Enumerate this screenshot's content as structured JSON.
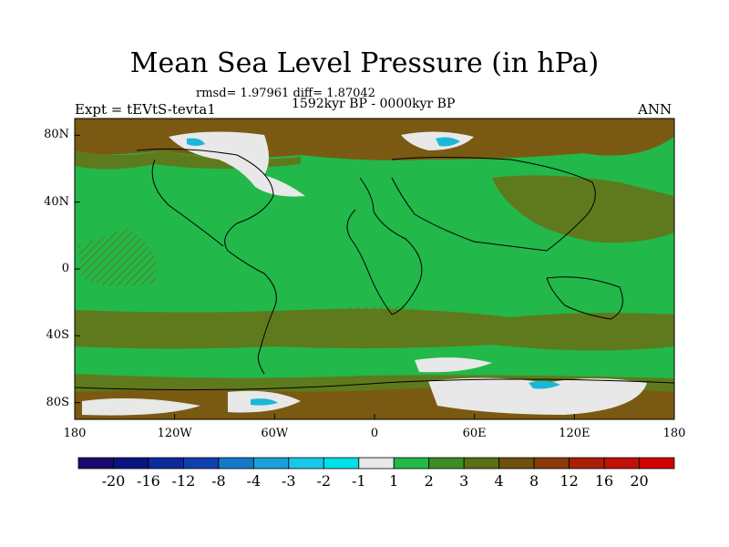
{
  "title": "Mean Sea Level Pressure (in hPa)",
  "stats": "rmsd= 1.97961 diff= 1.87042",
  "period": "1592kyr BP - 0000kyr BP",
  "experiment": "Expt = tEVtS-tevta1",
  "season": "ANN",
  "y_axis": {
    "ticks": [
      {
        "label": "80N",
        "value": 80
      },
      {
        "label": "40N",
        "value": 40
      },
      {
        "label": "0",
        "value": 0
      },
      {
        "label": "40S",
        "value": -40
      },
      {
        "label": "80S",
        "value": -80
      }
    ]
  },
  "x_axis": {
    "ticks": [
      {
        "label": "180",
        "value": -180
      },
      {
        "label": "120W",
        "value": -120
      },
      {
        "label": "60W",
        "value": -60
      },
      {
        "label": "0",
        "value": 0
      },
      {
        "label": "60E",
        "value": 60
      },
      {
        "label": "120E",
        "value": 120
      },
      {
        "label": "180",
        "value": 180
      }
    ]
  },
  "colorbar": {
    "labels": [
      "-20",
      "-16",
      "-12",
      "-8",
      "-4",
      "-3",
      "-2",
      "-1",
      "1",
      "2",
      "3",
      "4",
      "8",
      "12",
      "16",
      "20"
    ],
    "colors": [
      "#1a0a6e",
      "#0a1480",
      "#0d2a9a",
      "#1040b0",
      "#1478c8",
      "#1aa0d8",
      "#18c8e8",
      "#00e0e8",
      "#e8e8e8",
      "#22b84a",
      "#3c8c28",
      "#5a6e14",
      "#6e5010",
      "#8a3a0a",
      "#a82008",
      "#c01008",
      "#d00000"
    ]
  },
  "colors": {
    "land_outline": "#000000",
    "green": "#22b84a",
    "olive": "#5f7a1c",
    "brown": "#7a5a12",
    "white": "#e8e8e8",
    "cyan": "#1ab8d8"
  }
}
